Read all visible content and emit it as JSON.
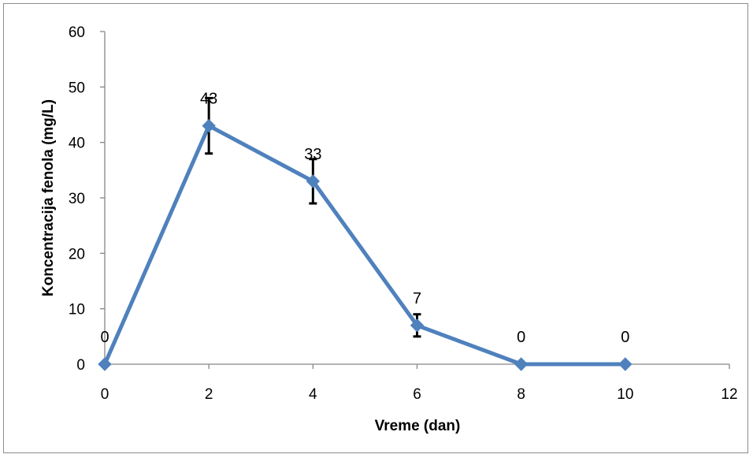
{
  "chart_data": {
    "type": "line",
    "title": "",
    "xlabel": "Vreme (dan)",
    "ylabel": "Koncentracija fenola (mg/L)",
    "xlim": [
      0,
      12
    ],
    "ylim": [
      0,
      60
    ],
    "x_ticks": [
      "0",
      "2",
      "4",
      "6",
      "8",
      "10",
      "12"
    ],
    "y_ticks": [
      "0",
      "10",
      "20",
      "30",
      "40",
      "50",
      "60"
    ],
    "grid": false,
    "legend": "none",
    "series": [
      {
        "color": "#4f81bd",
        "x": [
          0,
          2,
          4,
          6,
          8,
          10
        ],
        "y": [
          0,
          43,
          33,
          7,
          0,
          0
        ],
        "data_labels": [
          "0",
          "43",
          "33",
          "7",
          "0",
          "0"
        ],
        "error_bars": [
          0,
          5,
          4,
          2,
          0,
          0
        ]
      }
    ]
  }
}
